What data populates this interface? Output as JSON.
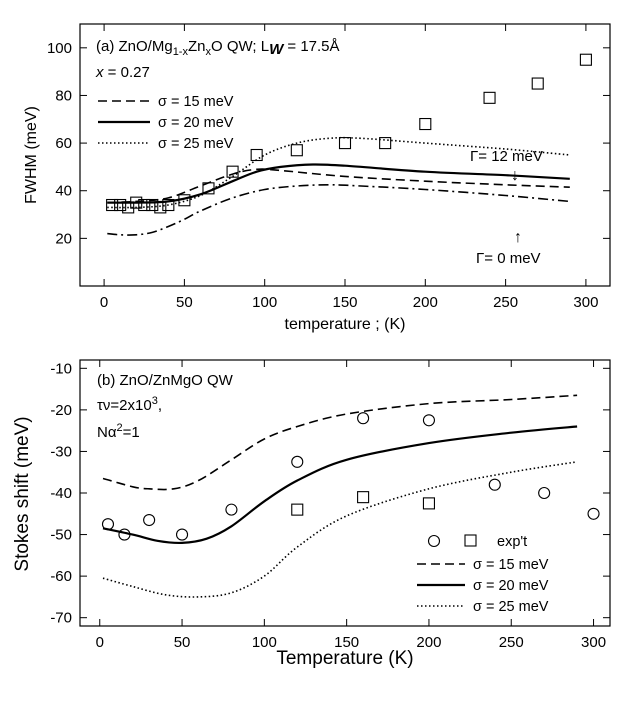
{
  "chart_data": [
    {
      "type": "scatter",
      "id": "a",
      "title": "(a) ZnO/Mg",
      "title_parts": {
        "prefix": "(a) ZnO/Mg",
        "sub1": "1-x",
        "mid": "Zn",
        "sub2": "x",
        "mid2": "O QW; L",
        "bold_sub": "W",
        "suffix": " = 17.5Å"
      },
      "param_label": "= 0.27",
      "param_var": "x",
      "xlabel": "temperature ; (K)",
      "ylabel": "FWHM (meV)",
      "xlim": [
        -15,
        315
      ],
      "ylim": [
        0,
        110
      ],
      "xticks": [
        0,
        50,
        100,
        150,
        200,
        250,
        300
      ],
      "yticks": [
        20,
        40,
        60,
        80,
        100
      ],
      "xtick_labels": [
        "0",
        "50",
        "100",
        "150",
        "200",
        "250",
        "300"
      ],
      "ytick_labels": [
        "20",
        "40",
        "60",
        "80",
        "100"
      ],
      "legend": [
        {
          "label": "σ = 15 meV",
          "style": "dashed"
        },
        {
          "label": "σ = 20 meV",
          "style": "solid"
        },
        {
          "label": "σ = 25 meV",
          "style": "dotted"
        }
      ],
      "annotations": [
        {
          "text": "Γ= 12 meV",
          "arrow": "↓",
          "x": 270,
          "y": 57
        },
        {
          "text": "Γ= 0 meV",
          "arrow": "↑",
          "x": 270,
          "y": 24
        }
      ],
      "series": [
        {
          "name": "σ = 15 meV",
          "style": "dashed",
          "x": [
            2,
            20,
            40,
            60,
            80,
            95,
            110,
            150,
            200,
            250,
            290
          ],
          "y": [
            35,
            35.5,
            37,
            42,
            47,
            49,
            48.5,
            46,
            44,
            42.5,
            41.5
          ]
        },
        {
          "name": "σ = 20 meV",
          "style": "solid",
          "x": [
            2,
            20,
            40,
            60,
            80,
            95,
            110,
            130,
            150,
            200,
            250,
            290
          ],
          "y": [
            35,
            35,
            35.5,
            38.5,
            44,
            48,
            50,
            51,
            50.5,
            48,
            46.5,
            45
          ]
        },
        {
          "name": "σ = 25 meV",
          "style": "dotted",
          "x": [
            2,
            20,
            40,
            60,
            80,
            100,
            120,
            140,
            160,
            200,
            250,
            290
          ],
          "y": [
            33,
            33,
            34,
            38,
            46,
            55,
            60,
            62,
            62,
            60,
            57.5,
            55
          ]
        },
        {
          "name": "Γ = 0 meV",
          "style": "dashdot",
          "x": [
            2,
            10,
            20,
            30,
            40,
            50,
            60,
            80,
            100,
            120,
            140,
            160,
            200,
            250,
            290
          ],
          "y": [
            22,
            21.5,
            21.5,
            22.5,
            25,
            28,
            31.5,
            37,
            40.5,
            42,
            42.5,
            42,
            40.5,
            38,
            35.5
          ]
        },
        {
          "name": "exp't",
          "style": "square",
          "x": [
            5,
            10,
            15,
            20,
            25,
            30,
            35,
            40,
            50,
            65,
            80,
            95,
            120,
            150,
            175,
            200,
            240,
            270,
            300
          ],
          "y": [
            34,
            34,
            33,
            35,
            34,
            34,
            33,
            34,
            36,
            41,
            48,
            55,
            57,
            60,
            60,
            68,
            79,
            85,
            95
          ]
        }
      ]
    },
    {
      "type": "scatter",
      "id": "b",
      "title": "(b) ZnO/ZnMgO QW",
      "param1": {
        "text": "τν=2x10",
        "sup": "3",
        "suffix": ","
      },
      "param2": {
        "text": "Nα",
        "sup": "2",
        "suffix": "=1"
      },
      "xlabel": "Temperature (K)",
      "ylabel": "Stokes shift (meV)",
      "xlim": [
        -12,
        310
      ],
      "ylim": [
        -72,
        -8
      ],
      "xticks": [
        0,
        50,
        100,
        150,
        200,
        250,
        300
      ],
      "yticks": [
        -70,
        -60,
        -50,
        -40,
        -30,
        -20,
        -10
      ],
      "xtick_labels": [
        "0",
        "50",
        "100",
        "150",
        "200",
        "250",
        "300"
      ],
      "ytick_labels": [
        "-70",
        "-60",
        "-50",
        "-40",
        "-30",
        "-20",
        "-10"
      ],
      "legend": [
        {
          "label": "exp't",
          "style": "markers"
        },
        {
          "label": "σ = 15 meV",
          "style": "dashed"
        },
        {
          "label": "σ = 20 meV",
          "style": "solid"
        },
        {
          "label": "σ = 25 meV",
          "style": "dotted"
        }
      ],
      "series": [
        {
          "name": "σ = 15 meV",
          "style": "dashed",
          "x": [
            2,
            20,
            30,
            45,
            60,
            80,
            100,
            120,
            150,
            200,
            250,
            290
          ],
          "y": [
            -36.5,
            -38.5,
            -39,
            -39,
            -37,
            -32,
            -27,
            -24,
            -21,
            -18.5,
            -17.5,
            -16.5
          ]
        },
        {
          "name": "σ = 20 meV",
          "style": "solid",
          "x": [
            2,
            20,
            35,
            50,
            65,
            80,
            100,
            120,
            150,
            200,
            250,
            290
          ],
          "y": [
            -48.5,
            -50,
            -51.5,
            -52,
            -51,
            -48,
            -42,
            -37,
            -32,
            -28,
            -25.5,
            -24
          ]
        },
        {
          "name": "σ = 25 meV",
          "style": "dotted",
          "x": [
            2,
            20,
            40,
            60,
            80,
            100,
            120,
            150,
            200,
            250,
            290
          ],
          "y": [
            -60.5,
            -62.5,
            -64.5,
            -65,
            -64,
            -60,
            -53,
            -45.5,
            -39,
            -35,
            -32.5
          ]
        },
        {
          "name": "exp't circles",
          "style": "circle",
          "x": [
            5,
            15,
            30,
            50,
            80,
            120,
            160,
            200,
            240,
            270,
            300
          ],
          "y": [
            -47.5,
            -50,
            -46.5,
            -50,
            -44,
            -32.5,
            -22,
            -22.5,
            -38,
            -40,
            -45
          ]
        },
        {
          "name": "exp't squares",
          "style": "square",
          "x": [
            120,
            160,
            200
          ],
          "y": [
            -44,
            -41,
            -42.5
          ]
        }
      ]
    }
  ]
}
